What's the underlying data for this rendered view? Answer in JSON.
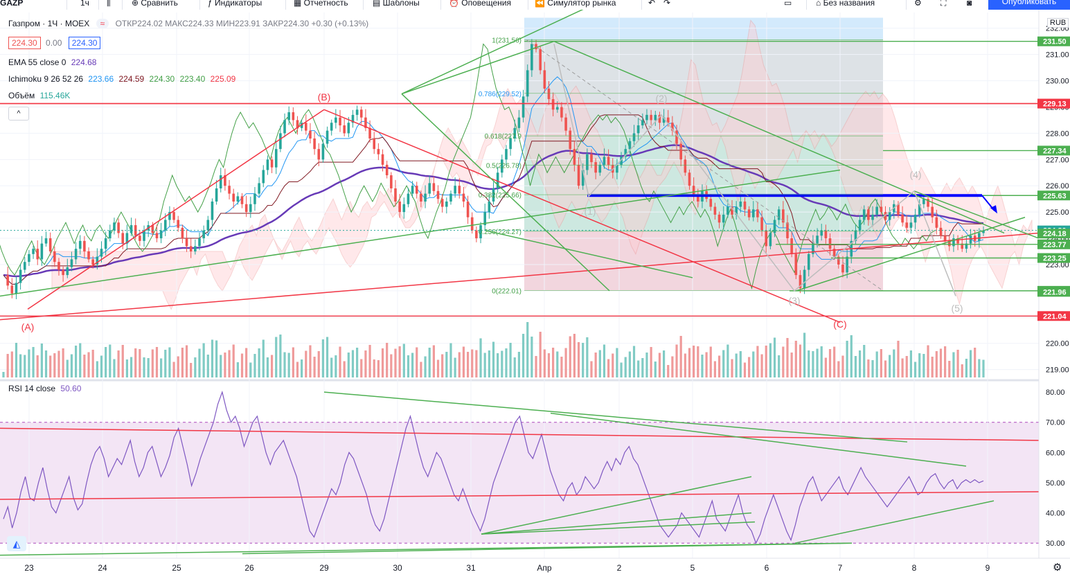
{
  "toolbar": {
    "symbol_cut": "GAZP",
    "interval": "1ч",
    "items": [
      "Сравнить",
      "Индикаторы",
      "Отчетность",
      "Шаблоны",
      "Оповещения",
      "Симулятор рынка"
    ],
    "layout_name": "Без названия",
    "publish": "Опубликовать"
  },
  "legend": {
    "title": "Газпром · 1Ч · MOEX",
    "ohlc": "ОТКР224.02 МАКС224.33 МИН223.91 ЗАКР224.30 +0.30 (+0.13%)",
    "price_bid": "224.30",
    "spread": "0.00",
    "price_ask": "224.30",
    "ema_label": "EMA 55 close 0",
    "ema_value": "224.68",
    "ichimoku_label": "Ichimoku 9 26 52 26",
    "ichimoku_values": [
      "223.66",
      "224.59",
      "224.30",
      "223.40",
      "225.09"
    ],
    "volume_label": "Объём",
    "volume_value": "115.46K",
    "rsi_label": "RSI 14 close",
    "rsi_value": "50.60",
    "currency": "RUB"
  },
  "chart_data": [
    {
      "type": "candlestick",
      "title": "Газпром · 1Ч · MOEX",
      "x_ticks": [
        "23",
        "24",
        "25",
        "26",
        "29",
        "30",
        "31",
        "Апр",
        "2",
        "5",
        "6",
        "7",
        "8",
        "9"
      ],
      "ylim": [
        218.7,
        232.6
      ],
      "y_ticks": [
        219,
        220,
        221,
        222,
        223,
        224,
        225,
        226,
        227,
        228,
        229,
        230,
        231,
        232
      ],
      "price_labels": [
        {
          "value": 231.5,
          "text": "231.50",
          "color": "#4caf50"
        },
        {
          "value": 229.13,
          "text": "229.13",
          "color": "#f23645"
        },
        {
          "value": 227.34,
          "text": "227.34",
          "color": "#4caf50"
        },
        {
          "value": 225.63,
          "text": "225.63",
          "color": "#4caf50"
        },
        {
          "value": 224.3,
          "text": "224.30",
          "color": "#26a69a"
        },
        {
          "value": 224.18,
          "text": "224.18",
          "color": "#4caf50"
        },
        {
          "value": 223.77,
          "text": "223.77",
          "color": "#4caf50"
        },
        {
          "value": 223.25,
          "text": "223.25",
          "color": "#4caf50"
        },
        {
          "value": 222.0,
          "text": "222.00",
          "color": "#4caf50"
        },
        {
          "value": 221.96,
          "text": "221.96",
          "color": "#4caf50"
        },
        {
          "value": 221.04,
          "text": "221.04",
          "color": "#f23645"
        }
      ],
      "fib_levels": [
        {
          "ratio": "1",
          "value": 231.56,
          "text": "1(231.56)"
        },
        {
          "ratio": "0.786",
          "value": 229.52,
          "text": "0.786(229.52)"
        },
        {
          "ratio": "0.618",
          "value": 227.9,
          "text": "0.618(227.9"
        },
        {
          "ratio": "0.5",
          "value": 226.78,
          "text": "0.5(226.78)"
        },
        {
          "ratio": "0.382",
          "value": 225.66,
          "text": "0.382(225.66)"
        },
        {
          "ratio": "0.236",
          "value": 224.27,
          "text": "0.236(224.27)"
        },
        {
          "ratio": "0",
          "value": 222.01,
          "text": "0(222.01)"
        }
      ],
      "wave_labels": [
        "(A)",
        "(B)",
        "(C)",
        "(1)",
        "(2)",
        "(3)",
        "(4)",
        "(5)"
      ],
      "close_series": [
        222.6,
        222.2,
        221.9,
        222.3,
        222.8,
        223.1,
        223.4,
        223.6,
        223.2,
        223.8,
        224.0,
        223.5,
        223.1,
        222.8,
        222.6,
        222.9,
        223.2,
        223.6,
        223.9,
        223.5,
        223.2,
        223.0,
        223.3,
        223.6,
        224.0,
        224.3,
        224.6,
        224.2,
        223.8,
        224.2,
        224.5,
        224.1,
        223.9,
        224.3,
        224.5,
        224.2,
        224.0,
        224.3,
        224.7,
        225.0,
        224.7,
        224.4,
        224.0,
        223.7,
        223.5,
        223.7,
        224.0,
        224.3,
        224.7,
        225.4,
        225.9,
        226.4,
        226.0,
        225.7,
        225.4,
        225.6,
        225.3,
        225.0,
        225.3,
        225.7,
        226.1,
        226.6,
        227.0,
        226.7,
        227.4,
        228.0,
        228.5,
        228.8,
        228.5,
        228.2,
        228.4,
        228.1,
        227.8,
        227.4,
        227.0,
        227.6,
        228.1,
        228.4,
        228.6,
        228.3,
        228.0,
        228.4,
        228.7,
        228.9,
        228.6,
        228.2,
        227.8,
        227.4,
        227.2,
        226.8,
        226.4,
        225.9,
        225.4,
        225.0,
        225.3,
        225.7,
        226.0,
        225.7,
        225.4,
        225.7,
        226.1,
        225.8,
        225.5,
        225.2,
        225.4,
        225.7,
        226.0,
        225.7,
        225.4,
        224.8,
        224.3,
        224.0,
        224.5,
        225.0,
        225.4,
        225.9,
        226.5,
        227.0,
        227.4,
        227.8,
        228.2,
        228.6,
        229.4,
        230.4,
        231.4,
        231.2,
        230.4,
        229.7,
        229.3,
        228.9,
        229.0,
        228.6,
        228.1,
        227.4,
        226.8,
        226.0,
        226.6,
        227.2,
        226.9,
        226.5,
        226.8,
        227.1,
        226.8,
        226.5,
        226.8,
        227.1,
        227.4,
        227.7,
        228.0,
        228.3,
        228.5,
        228.7,
        228.5,
        228.7,
        228.4,
        228.6,
        228.4,
        228.1,
        227.6,
        227.0,
        226.5,
        226.0,
        225.6,
        225.4,
        225.8,
        225.5,
        225.2,
        224.9,
        224.6,
        224.9,
        225.2,
        224.9,
        225.2,
        225.4,
        225.1,
        224.8,
        225.1,
        224.8,
        224.3,
        223.7,
        224.2,
        224.7,
        225.1,
        224.6,
        224.0,
        223.4,
        222.6,
        222.1,
        222.8,
        223.4,
        223.8,
        224.1,
        224.3,
        224.0,
        223.6,
        223.3,
        223.0,
        222.7,
        223.3,
        223.9,
        224.3,
        224.7,
        225.1,
        224.7,
        224.9,
        225.2,
        225.0,
        224.7,
        225.0,
        225.3,
        224.9,
        224.6,
        224.4,
        224.6,
        224.9,
        225.3,
        225.5,
        225.2,
        224.8,
        224.4,
        224.1,
        223.9,
        223.7,
        224.0,
        223.8,
        223.6,
        223.8,
        224.1,
        223.9,
        224.2,
        224.3
      ],
      "ema55_end": 224.68
    },
    {
      "type": "line",
      "title": "RSI 14 close",
      "ylim": [
        25,
        83
      ],
      "y_ticks": [
        30,
        40,
        50,
        60,
        70,
        80
      ],
      "band": [
        30,
        70
      ],
      "last_value": 50.6,
      "values": [
        38,
        42,
        35,
        40,
        47,
        52,
        45,
        44,
        50,
        55,
        48,
        42,
        40,
        44,
        48,
        52,
        45,
        41,
        43,
        50,
        56,
        60,
        62,
        58,
        52,
        55,
        58,
        56,
        60,
        64,
        57,
        52,
        55,
        60,
        62,
        57,
        52,
        55,
        59,
        65,
        68,
        62,
        56,
        49,
        53,
        58,
        62,
        66,
        70,
        76,
        80,
        74,
        70,
        72,
        68,
        62,
        66,
        70,
        72,
        66,
        60,
        56,
        60,
        62,
        64,
        60,
        56,
        52,
        46,
        40,
        34,
        32,
        36,
        40,
        44,
        48,
        46,
        50,
        56,
        60,
        58,
        54,
        50,
        46,
        40,
        36,
        34,
        38,
        44,
        50,
        56,
        62,
        68,
        72,
        66,
        60,
        55,
        52,
        56,
        60,
        58,
        54,
        50,
        46,
        44,
        48,
        44,
        40,
        37,
        34,
        38,
        44,
        50,
        54,
        58,
        62,
        66,
        70,
        72,
        66,
        60,
        58,
        62,
        66,
        60,
        54,
        50,
        46,
        44,
        48,
        50,
        46,
        48,
        52,
        50,
        48,
        50,
        54,
        57,
        54,
        58,
        56,
        60,
        62,
        58,
        56,
        52,
        48,
        44,
        40,
        36,
        34,
        32,
        34,
        36,
        40,
        38,
        36,
        34,
        32,
        36,
        40,
        44,
        38,
        36,
        34,
        38,
        42,
        46,
        40,
        36,
        34,
        30,
        33,
        38,
        42,
        46,
        42,
        38,
        34,
        31,
        36,
        42,
        46,
        50,
        52,
        48,
        44,
        46,
        48,
        50,
        52,
        48,
        46,
        49,
        52,
        55,
        52,
        50,
        48,
        46,
        44,
        42,
        44,
        46,
        48,
        50,
        52,
        49,
        46,
        47,
        50,
        52,
        53,
        50,
        48,
        50,
        51,
        48,
        50,
        51,
        50,
        51,
        50,
        50.6
      ]
    },
    {
      "type": "bar",
      "title": "Объём",
      "last_value": "115.46K"
    }
  ]
}
